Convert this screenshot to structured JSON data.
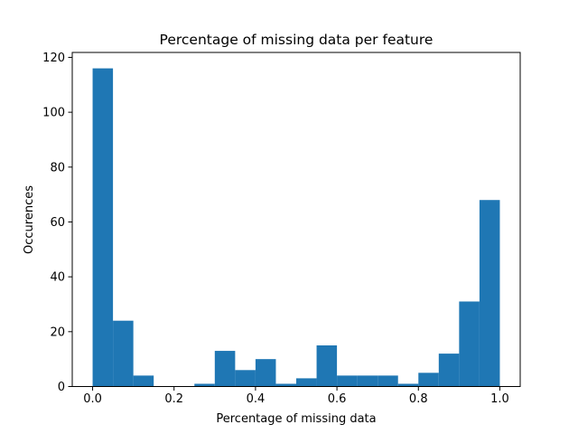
{
  "chart_data": {
    "type": "bar",
    "subtype": "histogram",
    "title": "Percentage of missing data per feature",
    "xlabel": "Percentage of missing data",
    "ylabel": "Occurences",
    "bin_edges": [
      0.0,
      0.05,
      0.1,
      0.15,
      0.2,
      0.25,
      0.3,
      0.35,
      0.4,
      0.45,
      0.5,
      0.55,
      0.6,
      0.65,
      0.7,
      0.75,
      0.8,
      0.85,
      0.9,
      0.95,
      1.0
    ],
    "values": [
      116,
      24,
      4,
      0,
      0,
      1,
      13,
      6,
      10,
      1,
      3,
      15,
      4,
      4,
      4,
      1,
      5,
      12,
      31,
      68
    ],
    "xlim": [
      -0.05,
      1.05
    ],
    "ylim": [
      0,
      121.8
    ],
    "xticks": [
      0.0,
      0.2,
      0.4,
      0.6,
      0.8,
      1.0
    ],
    "xtick_labels": [
      "0.0",
      "0.2",
      "0.4",
      "0.6",
      "0.8",
      "1.0"
    ],
    "yticks": [
      0,
      20,
      40,
      60,
      80,
      100,
      120
    ],
    "ytick_labels": [
      "0",
      "20",
      "40",
      "60",
      "80",
      "100",
      "120"
    ],
    "grid": false,
    "colors": {
      "bar": "#1f77b4",
      "axes": "#000000",
      "background": "#ffffff"
    }
  }
}
